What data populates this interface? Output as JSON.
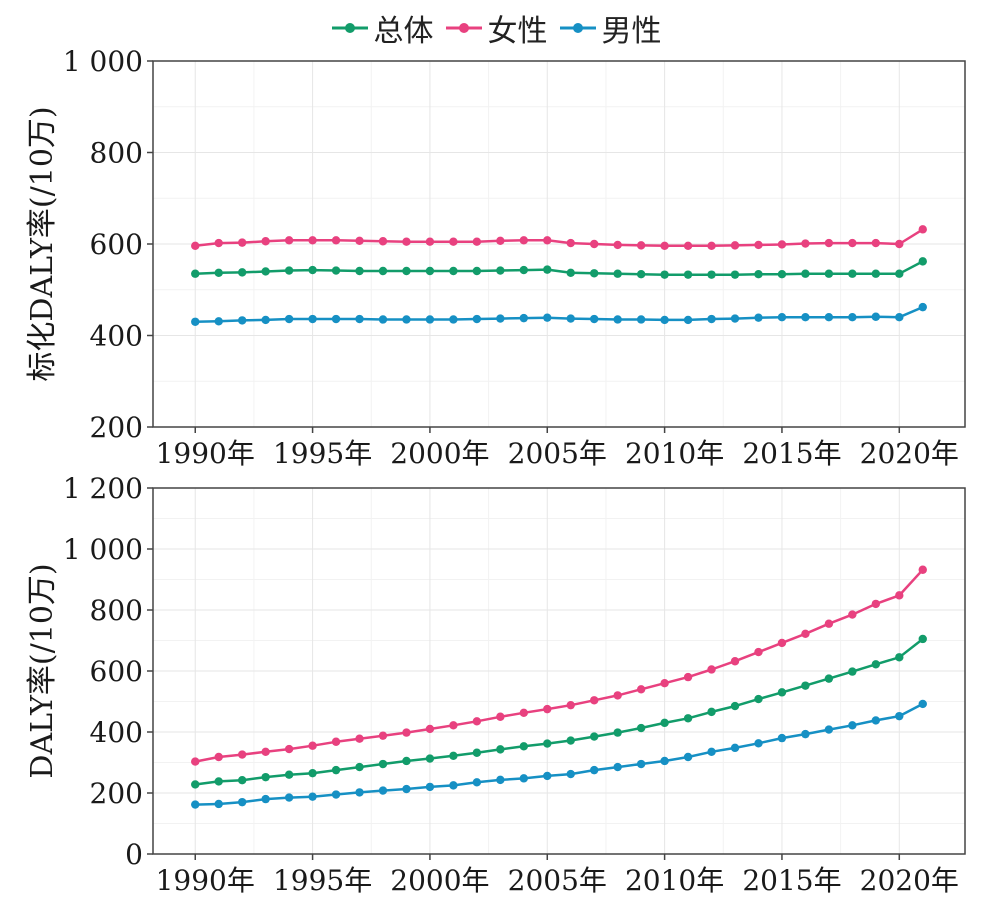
{
  "legend": {
    "items": [
      {
        "name": "总体",
        "color": "#129c6a"
      },
      {
        "name": "女性",
        "color": "#e8417f"
      },
      {
        "name": "男性",
        "color": "#1690c4"
      }
    ]
  },
  "chart_data": [
    {
      "type": "line",
      "ylabel": "标化DALY率(/10万)",
      "xlabel": "",
      "ylim": [
        200,
        1000
      ],
      "yticks": [
        200,
        400,
        600,
        800,
        1000
      ],
      "ytick_labels": [
        "200",
        "400",
        "600",
        "800",
        "1 000"
      ],
      "xlim": [
        1988.2,
        2022.8
      ],
      "xticks": [
        1990,
        1995,
        2000,
        2005,
        2010,
        2015,
        2020
      ],
      "xtick_labels": [
        "1990年",
        "1995年",
        "2000年",
        "2005年",
        "2010年",
        "2015年",
        "2020年"
      ],
      "grid": true,
      "x": [
        1990,
        1991,
        1992,
        1993,
        1994,
        1995,
        1996,
        1997,
        1998,
        1999,
        2000,
        2001,
        2002,
        2003,
        2004,
        2005,
        2006,
        2007,
        2008,
        2009,
        2010,
        2011,
        2012,
        2013,
        2014,
        2015,
        2016,
        2017,
        2018,
        2019,
        2020,
        2021
      ],
      "series": [
        {
          "name": "总体",
          "color": "#129c6a",
          "values": [
            535,
            537,
            538,
            540,
            542,
            543,
            542,
            541,
            541,
            541,
            541,
            541,
            541,
            542,
            543,
            544,
            537,
            536,
            535,
            534,
            533,
            533,
            533,
            533,
            534,
            534,
            535,
            535,
            535,
            535,
            535,
            562
          ]
        },
        {
          "name": "女性",
          "color": "#e8417f",
          "values": [
            596,
            602,
            603,
            606,
            608,
            608,
            608,
            607,
            606,
            605,
            605,
            605,
            605,
            607,
            608,
            608,
            602,
            600,
            598,
            597,
            596,
            596,
            596,
            597,
            598,
            599,
            601,
            602,
            602,
            602,
            600,
            632
          ]
        },
        {
          "name": "男性",
          "color": "#1690c4",
          "values": [
            430,
            431,
            433,
            434,
            436,
            436,
            436,
            436,
            435,
            435,
            435,
            435,
            436,
            437,
            438,
            439,
            437,
            436,
            435,
            435,
            434,
            434,
            436,
            437,
            439,
            440,
            440,
            440,
            440,
            441,
            440,
            462
          ]
        }
      ]
    },
    {
      "type": "line",
      "ylabel": "DALY率(/10万)",
      "xlabel": "",
      "ylim": [
        0,
        1200
      ],
      "yticks": [
        0,
        200,
        400,
        600,
        800,
        1000,
        1200
      ],
      "ytick_labels": [
        "0",
        "200",
        "400",
        "600",
        "800",
        "1 000",
        "1 200"
      ],
      "xlim": [
        1988.2,
        2022.8
      ],
      "xticks": [
        1990,
        1995,
        2000,
        2005,
        2010,
        2015,
        2020
      ],
      "xtick_labels": [
        "1990年",
        "1995年",
        "2000年",
        "2005年",
        "2010年",
        "2015年",
        "2020年"
      ],
      "grid": true,
      "x": [
        1990,
        1991,
        1992,
        1993,
        1994,
        1995,
        1996,
        1997,
        1998,
        1999,
        2000,
        2001,
        2002,
        2003,
        2004,
        2005,
        2006,
        2007,
        2008,
        2009,
        2010,
        2011,
        2012,
        2013,
        2014,
        2015,
        2016,
        2017,
        2018,
        2019,
        2020,
        2021
      ],
      "series": [
        {
          "name": "总体",
          "color": "#129c6a",
          "values": [
            228,
            238,
            242,
            252,
            260,
            265,
            275,
            285,
            295,
            305,
            313,
            322,
            332,
            343,
            353,
            362,
            372,
            385,
            398,
            413,
            430,
            445,
            466,
            485,
            508,
            530,
            552,
            575,
            598,
            622,
            645,
            705
          ]
        },
        {
          "name": "女性",
          "color": "#e8417f",
          "values": [
            303,
            318,
            326,
            335,
            344,
            355,
            368,
            378,
            388,
            398,
            410,
            422,
            435,
            450,
            463,
            475,
            488,
            504,
            520,
            540,
            560,
            580,
            605,
            632,
            662,
            692,
            722,
            755,
            785,
            820,
            848,
            932
          ]
        },
        {
          "name": "男性",
          "color": "#1690c4",
          "values": [
            162,
            164,
            170,
            180,
            185,
            188,
            195,
            202,
            208,
            213,
            220,
            225,
            235,
            243,
            248,
            256,
            262,
            275,
            285,
            295,
            305,
            318,
            335,
            348,
            363,
            380,
            393,
            408,
            422,
            438,
            452,
            492
          ]
        }
      ]
    }
  ]
}
